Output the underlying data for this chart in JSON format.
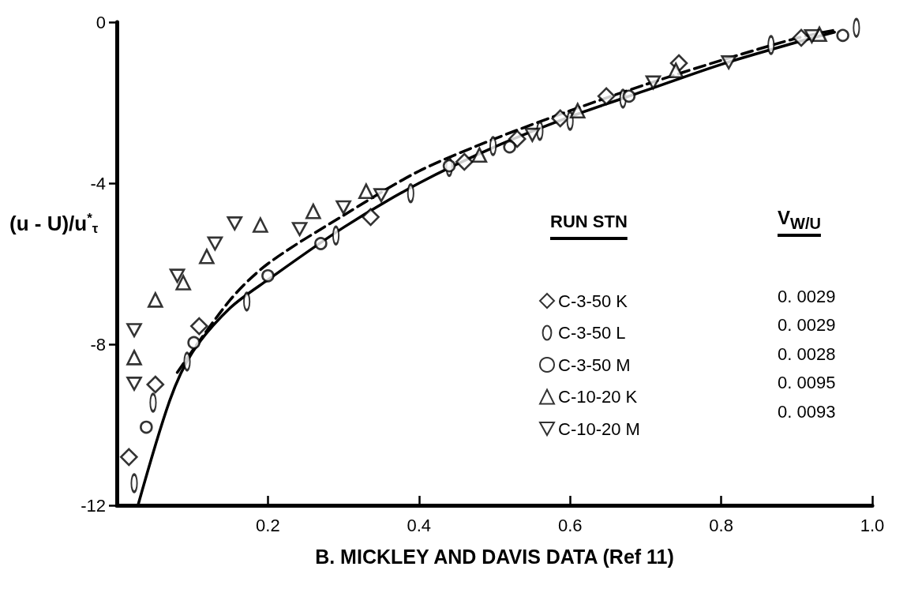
{
  "chart_data": {
    "type": "scatter",
    "xlabel": "B. MICKLEY AND DAVIS DATA (Ref 11)",
    "ylabel": "(u - U)/u$^{*}$$_{τ}$",
    "legend_title": "RUN STN",
    "legend": "right",
    "annotations": [
      "V$_{W/U}$",
      "0. 0029",
      "0. 0029",
      "0. 0028",
      "0. 0095",
      "0. 0093"
    ],
    "xlim": [
      0,
      1
    ],
    "xticks": [
      0.2,
      0.4,
      0.6,
      0.8,
      {
        "value": 1,
        "label": "1.0"
      }
    ],
    "ylim": [
      -12,
      0
    ],
    "yticks": [
      -12,
      -8,
      -4,
      0
    ],
    "grid": false,
    "series": [
      {
        "name": "C-3-50 K",
        "color": "#000000",
        "marker": "diamond",
        "x": [
          0.016,
          0.051,
          0.109,
          0.336,
          0.46,
          0.53,
          0.587,
          0.648,
          0.744,
          0.906
        ],
        "values": [
          -10.8,
          -9.0,
          -7.55,
          -4.84,
          -3.47,
          -2.9,
          -2.39,
          -1.84,
          -1.02,
          -0.39
        ]
      },
      {
        "name": "C-3-50 L",
        "color": "#000000",
        "x": [
          0.023,
          0.048,
          0.093,
          0.172,
          0.29,
          0.389,
          0.44,
          0.498,
          0.56,
          0.6,
          0.67,
          0.866,
          0.979
        ],
        "values": [
          -11.45,
          -9.45,
          -8.43,
          -6.94,
          -5.3,
          -4.25,
          -3.6,
          -3.08,
          -2.7,
          -2.45,
          -1.9,
          -0.57,
          -0.14
        ]
      },
      {
        "name": "C-3-50 M",
        "color": "#000000",
        "marker": "circle",
        "x": [
          0.039,
          0.102,
          0.2,
          0.27,
          0.44,
          0.52,
          0.678,
          0.961
        ],
        "values": [
          -10.06,
          -7.96,
          -6.3,
          -5.5,
          -3.57,
          -3.1,
          -1.84,
          -0.33
        ]
      },
      {
        "name": "C-10-20 K",
        "color": "#000000",
        "marker": "triangle",
        "x": [
          0.023,
          0.051,
          0.088,
          0.119,
          0.19,
          0.26,
          0.33,
          0.48,
          0.61,
          0.74,
          0.93
        ],
        "values": [
          -8.33,
          -6.9,
          -6.47,
          -5.82,
          -5.04,
          -4.7,
          -4.2,
          -3.3,
          -2.2,
          -1.2,
          -0.3
        ]
      },
      {
        "name": "C-10-20 M",
        "color": "#000000",
        "marker": "triangle_down",
        "x": [
          0.023,
          0.023,
          0.08,
          0.13,
          0.156,
          0.242,
          0.3,
          0.35,
          0.55,
          0.71,
          0.81,
          0.92
        ],
        "values": [
          -7.65,
          -8.98,
          -6.3,
          -5.5,
          -5.0,
          -5.14,
          -4.6,
          -4.3,
          -2.8,
          -1.5,
          -1.0,
          -0.35
        ]
      },
      {
        "type": "line",
        "color": "#000000",
        "line_style": "solid",
        "marker": "none",
        "x": [
          0.028,
          0.07,
          0.1,
          0.15,
          0.2,
          0.3,
          0.4,
          0.5,
          0.6,
          0.7,
          0.8,
          0.9,
          0.95
        ],
        "values": [
          -12,
          -9.4,
          -8.2,
          -7.1,
          -6.4,
          -5.1,
          -4.0,
          -3.1,
          -2.35,
          -1.7,
          -1.05,
          -0.5,
          -0.25
        ]
      },
      {
        "type": "line",
        "color": "#000000",
        "line_style": "dashed",
        "marker": "none",
        "x": [
          0.08,
          0.15,
          0.2,
          0.3,
          0.4,
          0.5,
          0.6,
          0.7,
          0.8,
          0.9,
          0.95
        ],
        "values": [
          -8.7,
          -6.9,
          -6.0,
          -4.8,
          -3.7,
          -2.9,
          -2.2,
          -1.55,
          -0.95,
          -0.4,
          -0.2
        ]
      }
    ]
  }
}
